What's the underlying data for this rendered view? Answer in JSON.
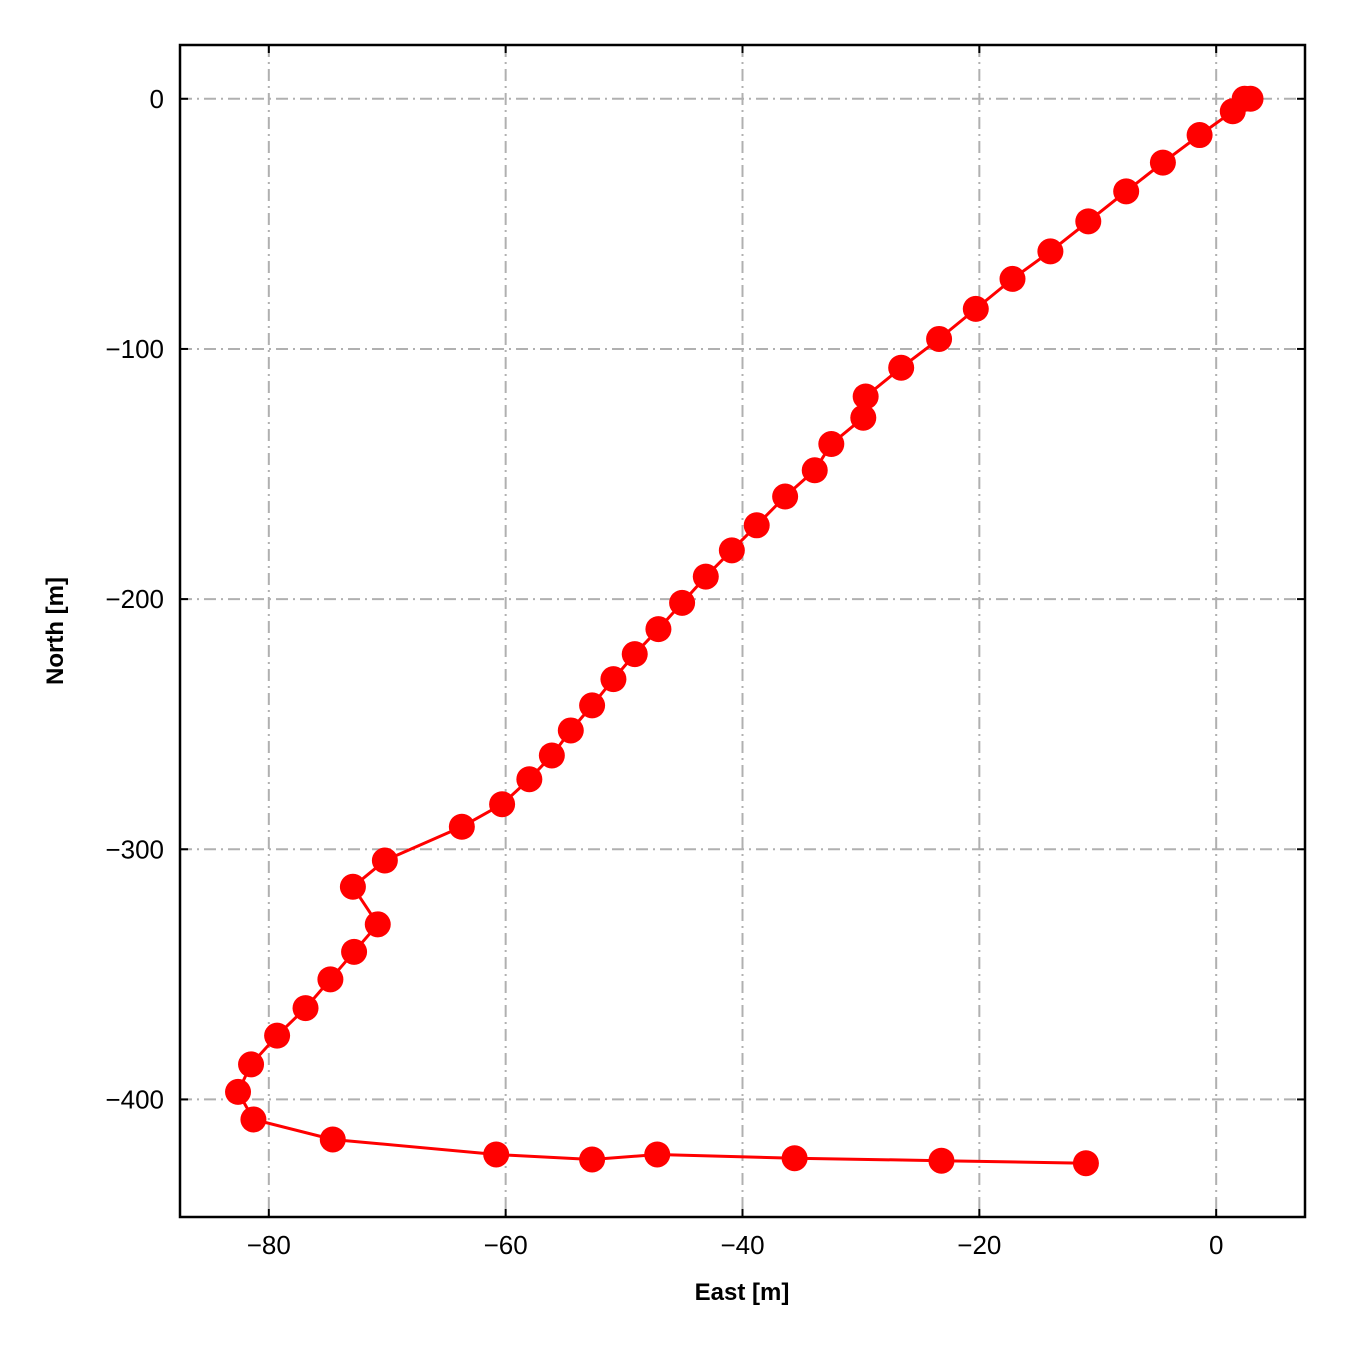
{
  "chart_data": {
    "type": "line",
    "xlabel": "East [m]",
    "ylabel": "North [m]",
    "xlim": [
      -87.5,
      7.5
    ],
    "ylim": [
      -447,
      21.5
    ],
    "xticks": [
      -80,
      -60,
      -40,
      -20,
      0
    ],
    "yticks": [
      0,
      -100,
      -200,
      -300,
      -400
    ],
    "xtick_labels": [
      "−80",
      "−60",
      "−40",
      "−20",
      "0"
    ],
    "ytick_labels": [
      "0",
      "−100",
      "−200",
      "−300",
      "−400"
    ],
    "grid": true,
    "grid_style": "dash-dot",
    "series": [
      {
        "color": "#ff0000",
        "marker": "circle",
        "x": [
          2.9,
          2.4,
          1.4,
          -1.4,
          -4.5,
          -7.6,
          -10.8,
          -14.0,
          -17.2,
          -20.3,
          -23.4,
          -26.6,
          -29.6,
          -29.8,
          -32.5,
          -33.9,
          -36.4,
          -38.8,
          -40.9,
          -43.1,
          -45.1,
          -47.1,
          -49.1,
          -50.9,
          -52.7,
          -54.5,
          -56.1,
          -58.0,
          -60.3,
          -63.7,
          -70.2,
          -72.9,
          -70.8,
          -72.8,
          -74.8,
          -76.9,
          -79.3,
          -81.5,
          -82.6,
          -81.3,
          -74.6,
          -60.8,
          -52.7,
          -47.2,
          -35.6,
          -23.2,
          -11.0
        ],
        "y": [
          0,
          0,
          -5,
          -14.5,
          -25.5,
          -37,
          -49,
          -61,
          -72,
          -84,
          -96,
          -107.5,
          -119,
          -127.5,
          -138,
          -148.5,
          -159,
          -170.5,
          -180.5,
          -191,
          -201.5,
          -212,
          -222,
          -232,
          -242.5,
          -252.5,
          -262.5,
          -272,
          -282,
          -291,
          -304.5,
          -315,
          -330,
          -341,
          -352,
          -363.5,
          -374.5,
          -386,
          -397,
          -408,
          -416,
          -422,
          -424,
          -422,
          -423.5,
          -424.5,
          -425.5
        ]
      }
    ]
  }
}
